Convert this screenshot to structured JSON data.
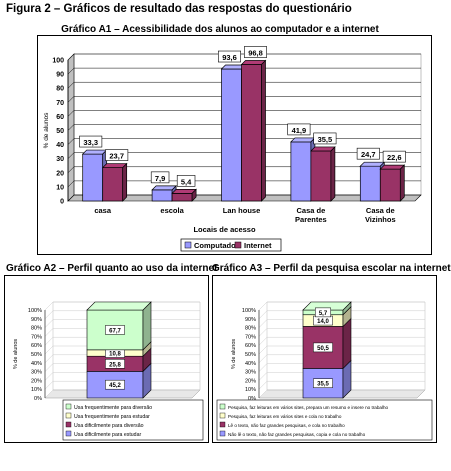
{
  "figure_title": "Figura 2 – Gráficos de resultado das respostas do questionário",
  "colors": {
    "computador": "#9999ff",
    "internet": "#993366",
    "diversao": "#ccffcc",
    "estudar": "#ffffcc",
    "dificil_diversao": "#993366",
    "dificil_estudar": "#9999ff"
  },
  "chart_data": [
    {
      "type": "bar",
      "title": "Gráfico A1 – Acessibilidade dos alunos ao computador e a internet",
      "ylabel": "% de alunos",
      "xlabel": "Locais de acesso",
      "ylim": [
        0,
        100
      ],
      "yticks": [
        "0",
        "10",
        "20",
        "30",
        "40",
        "50",
        "60",
        "70",
        "80",
        "90",
        "100"
      ],
      "categories": [
        [
          "casa"
        ],
        [
          "escola"
        ],
        [
          "Lan house"
        ],
        [
          "Casa de",
          "Parentes"
        ],
        [
          "Casa de",
          "Vizinhos"
        ]
      ],
      "series": [
        {
          "name": "Computador",
          "values": [
            33.3,
            7.9,
            93.6,
            41.9,
            24.7
          ],
          "labels": [
            "33,3",
            "7,9",
            "93,6",
            "41,9",
            "24,7"
          ]
        },
        {
          "name": "Internet",
          "values": [
            23.7,
            5.4,
            96.8,
            35.5,
            22.6
          ],
          "labels": [
            "23,7",
            "5,4",
            "96,8",
            "35,5",
            "22,6"
          ]
        }
      ],
      "legend": "bottom-right"
    },
    {
      "type": "bar",
      "stacked": true,
      "title": "Gráfico A2 – Perfil quanto ao uso da internet",
      "ylabel": "% de alunos",
      "ylim": [
        0,
        100
      ],
      "yticks": [
        "0%",
        "10%",
        "20%",
        "30%",
        "40%",
        "50%",
        "60%",
        "70%",
        "80%",
        "90%",
        "100%"
      ],
      "segments": [
        {
          "name": "Usa dificilmente para estudar",
          "value": 45.2,
          "label": "45,2"
        },
        {
          "name": "Usa dificilmente para diversão",
          "value": 25.8,
          "label": "25,8"
        },
        {
          "name": "Usa frequentimente para estudar",
          "value": 10.8,
          "label": "10,8"
        },
        {
          "name": "Usa frequentimente para diversão",
          "value": 67.7,
          "label": "67,7"
        }
      ],
      "legend": [
        "Usa frequentimente para diversão",
        "Usa frequentimente para estudar",
        "Usa dificilmente para diversão",
        "Usa dificilmente para estudar"
      ]
    },
    {
      "type": "bar",
      "stacked": true,
      "title": "Gráfico A3 – Perfil da pesquisa escolar na internet",
      "ylabel": "% de alunos",
      "ylim": [
        0,
        100
      ],
      "yticks": [
        "0%",
        "10%",
        "20%",
        "30%",
        "40%",
        "50%",
        "60%",
        "70%",
        "80%",
        "90%",
        "100%"
      ],
      "segments": [
        {
          "name": "Não lê o texto, não faz grandes pesquisas, copia e cola no trabalho",
          "value": 35.5,
          "label": "35,5"
        },
        {
          "name": "Lê o texto, não faz grandes pesquisas, e cola no trabalho",
          "value": 50.5,
          "label": "50,5"
        },
        {
          "name": "Pesquisa, faz leituras em vários sites e cola no trabalho",
          "value": 14.0,
          "label": "14,0"
        },
        {
          "name": "Pesquisa, faz leituras em vários sites, prepara um resumo e insere no trabalho",
          "value": 5.7,
          "label": "5,7"
        }
      ],
      "legend": [
        "Pesquisa, faz leituras em vários sites, prepara um resumo e insere no trabalho",
        "Pesquisa, faz leituras em vários sites e cola no trabalho",
        "Lê o texto, não faz grandes pesquisas, e cola no trabalho",
        "Não lê o texto, não faz grandes pesquisas, copia e cola no trabalho"
      ]
    }
  ]
}
